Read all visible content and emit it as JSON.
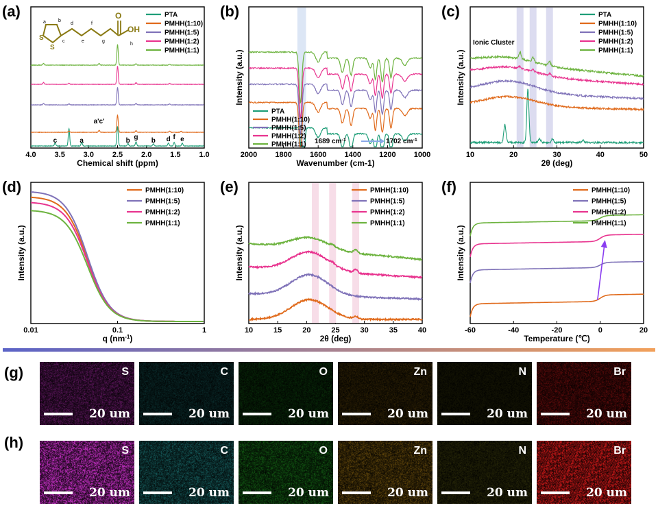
{
  "colors": {
    "PTA": "#1f9e78",
    "PMHH(1:10)": "#e06a1b",
    "PMHH(1:5)": "#7f72b8",
    "PMHH(1:2)": "#e8348f",
    "PMHH(1:1)": "#6db33f",
    "molecule": "#8a7a14",
    "blueBand": "#dce6f5",
    "purpleBand": "#dcdcf0",
    "pinkBand": "#f7dde8",
    "gradientStart": "#5b63c7",
    "gradientEnd": "#f2a05a"
  },
  "chart_data": [
    {
      "panel": "(a)",
      "type": "line",
      "xlabel": "Chemical shift (ppm)",
      "xlim": [
        4.0,
        1.0
      ],
      "xticks": [
        "4.0",
        "3.5",
        "3.0",
        "2.5",
        "2.0",
        "1.5",
        "1.0"
      ],
      "ylabel": "",
      "legend": [
        "PTA",
        "PMHH(1:10)",
        "PMHH(1:5)",
        "PMHH(1:2)",
        "PMHH(1:1)"
      ],
      "annotations": [
        "c",
        "a",
        "a'c'",
        "b",
        "g",
        "b",
        "d",
        "f",
        "e"
      ],
      "molecule_labels": [
        "a",
        "b",
        "c",
        "d",
        "e",
        "f",
        "g",
        "h"
      ],
      "molecule_atoms": [
        "S",
        "S",
        "O",
        "OH"
      ],
      "series": [
        {
          "name": "PTA",
          "peaks": [
            [
              3.58,
              0.15
            ],
            [
              3.34,
              0.85
            ],
            [
              3.12,
              0.18
            ],
            [
              2.5,
              0.95
            ],
            [
              2.32,
              0.12
            ],
            [
              2.18,
              0.2
            ],
            [
              1.88,
              0.1
            ],
            [
              1.62,
              0.14
            ],
            [
              1.52,
              0.17
            ],
            [
              1.38,
              0.14
            ]
          ]
        },
        {
          "name": "PMHH(1:10)",
          "peaks": [
            [
              3.34,
              0.06
            ],
            [
              2.82,
              0.1
            ],
            [
              2.5,
              0.9
            ],
            [
              2.18,
              0.08
            ],
            [
              1.6,
              0.06
            ],
            [
              1.4,
              0.05
            ]
          ]
        },
        {
          "name": "PMHH(1:5)",
          "peaks": [
            [
              3.78,
              0.08
            ],
            [
              3.34,
              0.05
            ],
            [
              2.5,
              0.92
            ],
            [
              2.18,
              0.07
            ],
            [
              1.6,
              0.05
            ]
          ]
        },
        {
          "name": "PMHH(1:2)",
          "peaks": [
            [
              3.78,
              0.1
            ],
            [
              3.34,
              0.05
            ],
            [
              2.5,
              0.95
            ],
            [
              2.18,
              0.08
            ],
            [
              1.6,
              0.05
            ]
          ]
        },
        {
          "name": "PMHH(1:1)",
          "peaks": [
            [
              3.78,
              0.08
            ],
            [
              2.82,
              0.08
            ],
            [
              2.5,
              1.0
            ],
            [
              2.18,
              0.07
            ],
            [
              1.6,
              0.05
            ]
          ]
        }
      ]
    },
    {
      "panel": "(b)",
      "type": "line",
      "xlabel": "Wavenumber (cm-1)",
      "xlim": [
        2000,
        1000
      ],
      "xticks": [
        "2000",
        "1800",
        "1600",
        "1400",
        "1200",
        "1000"
      ],
      "ylabel": "Intensity (a.u.)",
      "legend": [
        "PTA",
        "PMHH(1:10)",
        "PMHH(1:5)",
        "PMHH(1:2)",
        "PMHH(1:1)"
      ],
      "annotation_left": "1689 cm",
      "annotation_right": "1702 cm",
      "annotation_sup": "-1",
      "band": [
        1720,
        1670
      ],
      "dips": [
        [
          1700,
          0.42,
          8
        ],
        [
          1600,
          0.08,
          14
        ],
        [
          1460,
          0.12,
          10
        ],
        [
          1410,
          0.14,
          9
        ],
        [
          1300,
          0.08,
          10
        ],
        [
          1270,
          0.18,
          7
        ],
        [
          1230,
          0.2,
          8
        ],
        [
          1180,
          0.16,
          8
        ],
        [
          1100,
          0.06,
          14
        ]
      ],
      "series": [
        {
          "name": "PTA",
          "offset": 0.0,
          "peakpos": 1689
        },
        {
          "name": "PMHH(1:10)",
          "offset": 0.22,
          "peakpos": 1702
        },
        {
          "name": "PMHH(1:5)",
          "offset": 0.38,
          "peakpos": 1702
        },
        {
          "name": "PMHH(1:2)",
          "offset": 0.52,
          "peakpos": 1702
        },
        {
          "name": "PMHH(1:1)",
          "offset": 0.66,
          "peakpos": 1702
        }
      ]
    },
    {
      "panel": "(c)",
      "type": "line",
      "xlabel": "2θ (deg)",
      "xlim": [
        10,
        50
      ],
      "xticks": [
        "10",
        "20",
        "30",
        "40",
        "50"
      ],
      "ylabel": "Intensity (a.u.)",
      "legend": [
        "PTA",
        "PMHH(1:10)",
        "PMHH(1:5)",
        "PMHH(1:2)",
        "PMHH(1:1)"
      ],
      "annotation": "Ionic Cluster",
      "bands": [
        21.5,
        24.5,
        28.3
      ],
      "series": [
        {
          "name": "PTA",
          "offset": 0.0,
          "hump": 0.0,
          "peaks": [
            [
              18.0,
              0.22
            ],
            [
              23.3,
              0.65
            ],
            [
              26.0,
              0.05
            ],
            [
              29.0,
              0.05
            ],
            [
              36.0,
              0.03
            ]
          ]
        },
        {
          "name": "PMHH(1:10)",
          "offset": 0.45,
          "hump": 0.12,
          "peaks": []
        },
        {
          "name": "PMHH(1:5)",
          "offset": 0.63,
          "hump": 0.14,
          "peaks": []
        },
        {
          "name": "PMHH(1:2)",
          "offset": 0.85,
          "hump": 0.1,
          "peaks": [
            [
              21.5,
              0.03
            ],
            [
              24.5,
              0.03
            ],
            [
              28.3,
              0.03
            ]
          ]
        },
        {
          "name": "PMHH(1:1)",
          "offset": 1.0,
          "hump": 0.08,
          "peaks": [
            [
              21.5,
              0.08
            ],
            [
              24.5,
              0.05
            ],
            [
              28.3,
              0.05
            ]
          ]
        }
      ]
    },
    {
      "panel": "(d)",
      "type": "line",
      "xlabel": "q (nm",
      "xlabel_sup": "-1",
      "xlabel_end": ")",
      "xscale": "log",
      "xlim": [
        0.01,
        1
      ],
      "xticks": [
        "0.01",
        "0.1",
        "1"
      ],
      "ylabel": "Intensity (a.u.)",
      "legend": [
        "PMHH(1:10)",
        "PMHH(1:5)",
        "PMHH(1:2)",
        "PMHH(1:1)"
      ],
      "series": [
        {
          "name": "PMHH(1:10)",
          "start": 0.93
        },
        {
          "name": "PMHH(1:5)",
          "start": 0.97
        },
        {
          "name": "PMHH(1:2)",
          "start": 0.89
        },
        {
          "name": "PMHH(1:1)",
          "start": 0.83
        }
      ]
    },
    {
      "panel": "(e)",
      "type": "line",
      "xlabel": "2θ (deg)",
      "xlim": [
        10,
        40
      ],
      "xticks": [
        "10",
        "15",
        "20",
        "25",
        "30",
        "35",
        "40"
      ],
      "ylabel": "Intensity (a.u.)",
      "legend": [
        "PMHH(1:10)",
        "PMHH(1:5)",
        "PMHH(1:2)",
        "PMHH(1:1)"
      ],
      "bands": [
        21.5,
        24.5,
        28.5
      ],
      "series": [
        {
          "name": "PMHH(1:10)",
          "offset": 0.0,
          "hump": 0.17
        },
        {
          "name": "PMHH(1:5)",
          "offset": 0.22,
          "hump": 0.18
        },
        {
          "name": "PMHH(1:2)",
          "offset": 0.45,
          "hump": 0.16
        },
        {
          "name": "PMHH(1:1)",
          "offset": 0.65,
          "hump": 0.1
        }
      ]
    },
    {
      "panel": "(f)",
      "type": "line",
      "xlabel": "Temperature (℃)",
      "xlim": [
        -60,
        20
      ],
      "xticks": [
        "-60",
        "-40",
        "-20",
        "0",
        "20"
      ],
      "ylabel": "Intensity (a.u.)",
      "legend": [
        "PMHH(1:10)",
        "PMHH(1:5)",
        "PMHH(1:2)",
        "PMHH(1:1)"
      ],
      "step_temperature": 0,
      "series": [
        {
          "name": "PMHH(1:10)",
          "level": 0.12,
          "step": 0.05
        },
        {
          "name": "PMHH(1:5)",
          "level": 0.38,
          "step": 0.04
        },
        {
          "name": "PMHH(1:2)",
          "level": 0.58,
          "step": 0.05
        },
        {
          "name": "PMHH(1:1)",
          "level": 0.74,
          "step": 0.04
        }
      ]
    }
  ],
  "mapping": {
    "labels": [
      "(g)",
      "(h)"
    ],
    "scale_text": "20 um",
    "elements": [
      {
        "symbol": "S",
        "color": "#d233d2"
      },
      {
        "symbol": "C",
        "color": "#2fc6c6"
      },
      {
        "symbol": "O",
        "color": "#28c22a"
      },
      {
        "symbol": "Zn",
        "color": "#d49a18"
      },
      {
        "symbol": "N",
        "color": "#cfcf2a"
      },
      {
        "symbol": "Br",
        "color": "#d61a1a"
      }
    ],
    "intensity": [
      0.55,
      0.8
    ]
  }
}
